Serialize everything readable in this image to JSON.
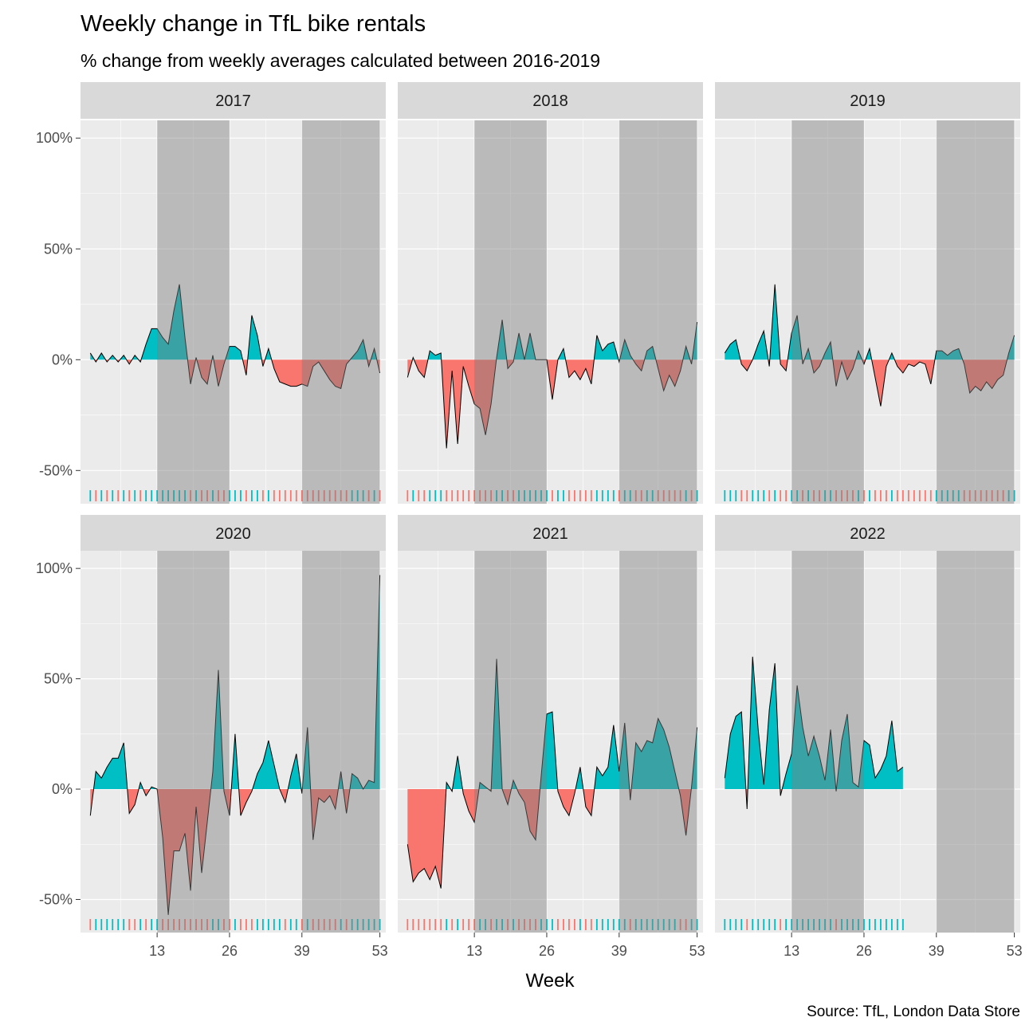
{
  "chart_data": {
    "type": "area",
    "title": "Weekly change in TfL bike rentals",
    "subtitle": "% change from weekly averages calculated between 2016-2019",
    "caption": "Source: TfL, London Data Store",
    "xlabel": "Week",
    "ylabel": "",
    "xlim": [
      1,
      53
    ],
    "ylim": [
      -65,
      108
    ],
    "x_ticks": [
      13,
      26,
      39,
      53
    ],
    "y_ticks": [
      {
        "value": -50,
        "label": "-50%"
      },
      {
        "value": 0,
        "label": "0%"
      },
      {
        "value": 50,
        "label": "50%"
      },
      {
        "value": 100,
        "label": "100%"
      }
    ],
    "shaded_week_ranges": [
      [
        13,
        26
      ],
      [
        39,
        53
      ]
    ],
    "rug": true,
    "colors": {
      "positive": "#00BFC4",
      "negative": "#F8766D",
      "shade": "#7f7f7f",
      "panel": "#EBEBEB",
      "strip": "#D9D9D9",
      "grid": "#ffffff"
    },
    "panels": [
      {
        "label": "2017",
        "values": [
          3,
          -1,
          3,
          -1,
          2,
          -1,
          2,
          -2,
          2,
          -1,
          7,
          14,
          14,
          10,
          7,
          22,
          34,
          10,
          -11,
          1,
          -8,
          -11,
          2,
          -12,
          -2,
          6,
          6,
          4,
          -7,
          20,
          11,
          -3,
          5,
          -4,
          -10,
          -11,
          -12,
          -12,
          -11,
          -12,
          -3,
          -1,
          -5,
          -9,
          -12,
          -13,
          -2,
          1,
          4,
          9,
          -3,
          5,
          -6
        ]
      },
      {
        "label": "2018",
        "values": [
          -8,
          1,
          -5,
          -8,
          4,
          2,
          3,
          -40,
          -5,
          -38,
          -3,
          -12,
          -20,
          -22,
          -34,
          -20,
          1,
          18,
          -4,
          -1,
          12,
          0,
          12,
          0,
          0,
          0,
          -18,
          0,
          5,
          -8,
          -5,
          -9,
          -4,
          -11,
          11,
          4,
          7,
          8,
          -1,
          9,
          2,
          -2,
          -5,
          4,
          6,
          -4,
          -14,
          -7,
          -12,
          -5,
          6,
          -2,
          17
        ]
      },
      {
        "label": "2019",
        "values": [
          3,
          7,
          9,
          -2,
          -5,
          0,
          7,
          13,
          -3,
          34,
          -2,
          -5,
          12,
          20,
          -2,
          5,
          -6,
          -3,
          3,
          8,
          -12,
          -1,
          -9,
          -4,
          4,
          -2,
          5,
          -8,
          -21,
          -3,
          3,
          -3,
          -6,
          -2,
          -3,
          -1,
          -2,
          -11,
          4,
          4,
          2,
          4,
          5,
          -2,
          -15,
          -12,
          -14,
          -10,
          -13,
          -9,
          -7,
          3,
          11
        ]
      },
      {
        "label": "2020",
        "values": [
          -12,
          8,
          5,
          10,
          14,
          14,
          21,
          -11,
          -7,
          3,
          -3,
          1,
          0,
          -22,
          -57,
          -28,
          -28,
          -20,
          -46,
          -8,
          -38,
          -15,
          8,
          54,
          -1,
          -12,
          25,
          -12,
          -6,
          -1,
          7,
          12,
          22,
          11,
          0,
          -6,
          6,
          16,
          -2,
          28,
          -23,
          -4,
          -6,
          -3,
          -9,
          8,
          -11,
          7,
          5,
          0,
          4,
          3,
          97
        ]
      },
      {
        "label": "2021",
        "values": [
          -25,
          -42,
          -38,
          -36,
          -41,
          -35,
          -45,
          3,
          -1,
          15,
          -2,
          -10,
          -15,
          3,
          1,
          -1,
          59,
          0,
          -7,
          4,
          -2,
          -6,
          -19,
          -23,
          6,
          34,
          35,
          -1,
          -8,
          -12,
          -2,
          10,
          -8,
          -12,
          10,
          6,
          10,
          29,
          8,
          30,
          -5,
          21,
          17,
          22,
          21,
          32,
          27,
          19,
          8,
          -3,
          -21,
          1,
          28
        ]
      },
      {
        "label": "2022",
        "values": [
          5,
          25,
          33,
          35,
          -9,
          60,
          27,
          2,
          36,
          57,
          -3,
          7,
          16,
          47,
          28,
          15,
          24,
          15,
          4,
          27,
          -1,
          22,
          34,
          3,
          1,
          22,
          20,
          5,
          9,
          15,
          31,
          8,
          10
        ]
      }
    ]
  }
}
